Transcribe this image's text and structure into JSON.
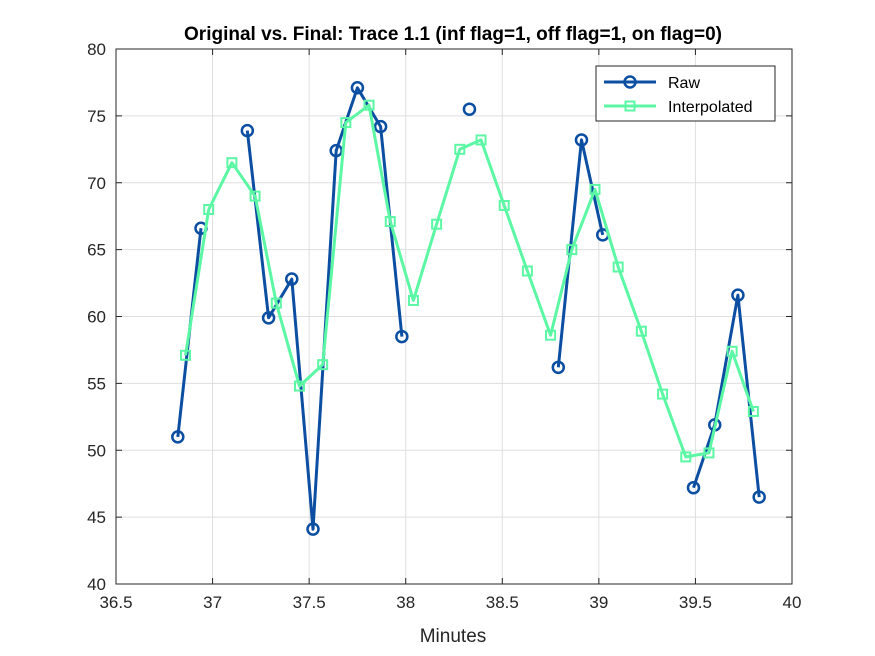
{
  "chart_data": {
    "type": "line",
    "title": "Original vs. Final: Trace 1.1 (inf flag=1, off flag=1, on flag=0)",
    "xlabel": "Minutes",
    "ylabel": "",
    "xlim": [
      36.5,
      40
    ],
    "ylim": [
      40,
      80
    ],
    "xticks": [
      "36.5",
      "37",
      "37.5",
      "38",
      "38.5",
      "39",
      "39.5",
      "40"
    ],
    "yticks": [
      "40",
      "45",
      "50",
      "55",
      "60",
      "65",
      "70",
      "75",
      "80"
    ],
    "grid": true,
    "legend_position": "top-right",
    "series": [
      {
        "name": "Raw",
        "color": "#0b4ea2",
        "marker": "circle",
        "segments": [
          [
            [
              36.82,
              51.0
            ],
            [
              36.94,
              66.6
            ]
          ],
          [
            [
              37.18,
              73.9
            ],
            [
              37.29,
              59.9
            ],
            [
              37.41,
              62.8
            ],
            [
              37.52,
              44.1
            ],
            [
              37.64,
              72.4
            ],
            [
              37.75,
              77.1
            ],
            [
              37.87,
              74.2
            ],
            [
              37.98,
              58.5
            ]
          ],
          [
            [
              38.33,
              75.5
            ]
          ],
          [
            [
              38.79,
              56.2
            ],
            [
              38.91,
              73.2
            ],
            [
              39.02,
              66.1
            ]
          ],
          [
            [
              39.49,
              47.2
            ],
            [
              39.6,
              51.9
            ],
            [
              39.72,
              61.6
            ],
            [
              39.83,
              46.5
            ]
          ]
        ]
      },
      {
        "name": "Interpolated",
        "color": "#5cf7a5",
        "marker": "square",
        "segments": [
          [
            [
              36.86,
              57.1
            ],
            [
              36.98,
              68.0
            ],
            [
              37.1,
              71.5
            ],
            [
              37.22,
              69.0
            ],
            [
              37.33,
              61.0
            ],
            [
              37.45,
              54.8
            ],
            [
              37.57,
              56.4
            ],
            [
              37.69,
              74.5
            ],
            [
              37.81,
              75.8
            ],
            [
              37.92,
              67.1
            ],
            [
              38.04,
              61.2
            ],
            [
              38.16,
              66.9
            ],
            [
              38.28,
              72.5
            ],
            [
              38.39,
              73.2
            ],
            [
              38.51,
              68.3
            ],
            [
              38.63,
              63.4
            ],
            [
              38.75,
              58.6
            ],
            [
              38.86,
              65.0
            ],
            [
              38.98,
              69.5
            ],
            [
              39.1,
              63.7
            ],
            [
              39.22,
              58.9
            ],
            [
              39.33,
              54.2
            ],
            [
              39.45,
              49.5
            ],
            [
              39.57,
              49.8
            ],
            [
              39.69,
              57.4
            ],
            [
              39.8,
              52.9
            ]
          ]
        ]
      }
    ]
  }
}
